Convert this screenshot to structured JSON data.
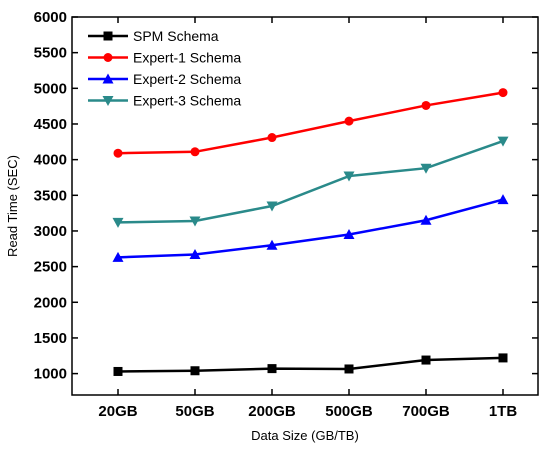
{
  "chart_data": {
    "type": "line",
    "title": "",
    "xlabel": "Data Size (GB/TB)",
    "ylabel": "Read Time (SEC)",
    "categories": [
      "20GB",
      "50GB",
      "200GB",
      "500GB",
      "700GB",
      "1TB"
    ],
    "ylim": [
      700,
      6000
    ],
    "yticks": [
      1000,
      1500,
      2000,
      2500,
      3000,
      3500,
      4000,
      4500,
      5000,
      5500,
      6000
    ],
    "grid": false,
    "legend_position": "top-left",
    "series": [
      {
        "name": "SPM Schema",
        "color": "#000000",
        "marker": "square",
        "values": [
          1030,
          1040,
          1070,
          1065,
          1190,
          1220
        ]
      },
      {
        "name": "Expert-1 Schema",
        "color": "#ff0000",
        "marker": "circle",
        "values": [
          4090,
          4110,
          4310,
          4540,
          4760,
          4940
        ]
      },
      {
        "name": "Expert-2 Schema",
        "color": "#0000ff",
        "marker": "triangle-up",
        "values": [
          2630,
          2670,
          2800,
          2950,
          3150,
          3440
        ]
      },
      {
        "name": "Expert-3 Schema",
        "color": "#2a8a8a",
        "marker": "triangle-down",
        "values": [
          3120,
          3140,
          3350,
          3770,
          3880,
          4260
        ]
      }
    ]
  }
}
